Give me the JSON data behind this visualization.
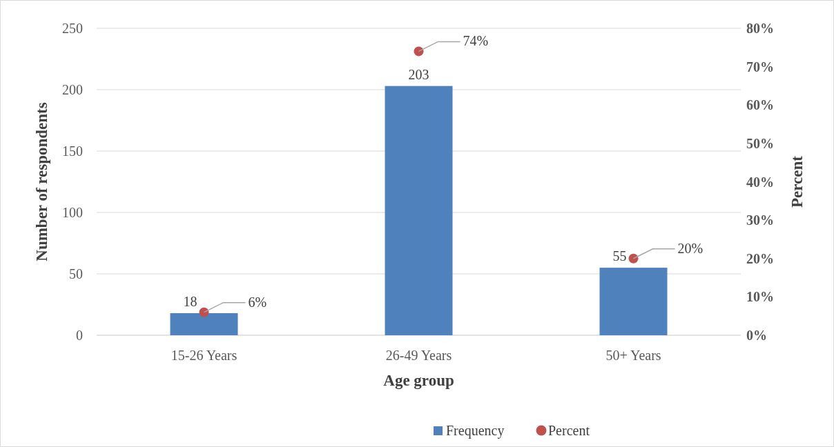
{
  "chart_data": {
    "type": "bar",
    "xlabel": "Age group",
    "ylabel": "Number of respondents",
    "y2label": "Percent",
    "categories": [
      "15-26 Years",
      "26-49 Years",
      "50+ Years"
    ],
    "series": [
      {
        "name": "Frequency",
        "color": "#4f81bd",
        "values": [
          18,
          203,
          55
        ],
        "value_labels": [
          "18",
          "203",
          "55"
        ]
      },
      {
        "name": "Percent",
        "type": "scatter",
        "axis": "y2",
        "color": "#c0504d",
        "marker": "circle",
        "values": [
          6,
          74,
          20
        ],
        "value_labels": [
          "6%",
          "74%",
          "20%"
        ]
      }
    ],
    "ylim": [
      0,
      250
    ],
    "yticks": [
      0,
      50,
      100,
      150,
      200,
      250
    ],
    "y2lim": [
      0,
      80
    ],
    "y2ticks": [
      {
        "value": 0,
        "label": "0%"
      },
      {
        "value": 10,
        "label": "10%"
      },
      {
        "value": 20,
        "label": "20%"
      },
      {
        "value": 30,
        "label": "30%"
      },
      {
        "value": 40,
        "label": "40%"
      },
      {
        "value": 50,
        "label": "50%"
      },
      {
        "value": 60,
        "label": "60%"
      },
      {
        "value": 70,
        "label": "70%"
      },
      {
        "value": 80,
        "label": "80%"
      }
    ],
    "grid": "y",
    "legend": "bottom"
  }
}
